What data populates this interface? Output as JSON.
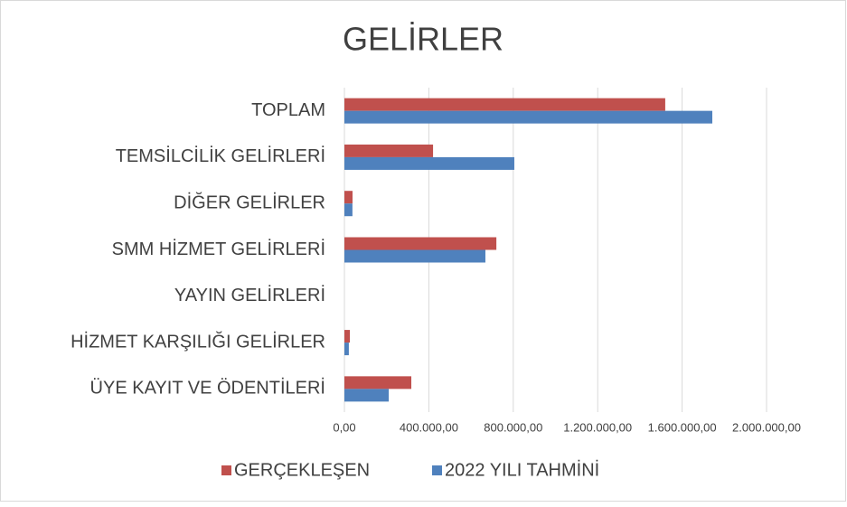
{
  "chart_data": {
    "type": "hbar",
    "title": "GELİRLER",
    "categories": [
      "TOPLAM",
      "TEMSİLCİLİK GELİRLERİ",
      "DİĞER GELİRLER",
      "SMM HİZMET GELİRLERİ",
      "YAYIN GELİRLERİ",
      "HİZMET KARŞILIĞI GELİRLER",
      "ÜYE KAYIT VE ÖDENTİLERİ"
    ],
    "series": [
      {
        "name": "GERÇEKLEŞEN",
        "color": "#c0504d",
        "values": [
          1520000,
          420000,
          38500,
          720000,
          0,
          26000,
          317000
        ]
      },
      {
        "name": "2022 YILI TAHMİNİ",
        "color": "#4f81bd",
        "values": [
          1743000,
          805000,
          38000,
          668000,
          0,
          21000,
          210000
        ]
      }
    ],
    "xlim": [
      0,
      2000000
    ],
    "xticks": [
      {
        "value": 0,
        "label": "0,00"
      },
      {
        "value": 400000,
        "label": "400.000,00"
      },
      {
        "value": 800000,
        "label": "800.000,00"
      },
      {
        "value": 1200000,
        "label": "1.200.000,00"
      },
      {
        "value": 1600000,
        "label": "1.600.000,00"
      },
      {
        "value": 2000000,
        "label": "2.000.000,00"
      }
    ],
    "grid": true,
    "legend": "bottom"
  }
}
